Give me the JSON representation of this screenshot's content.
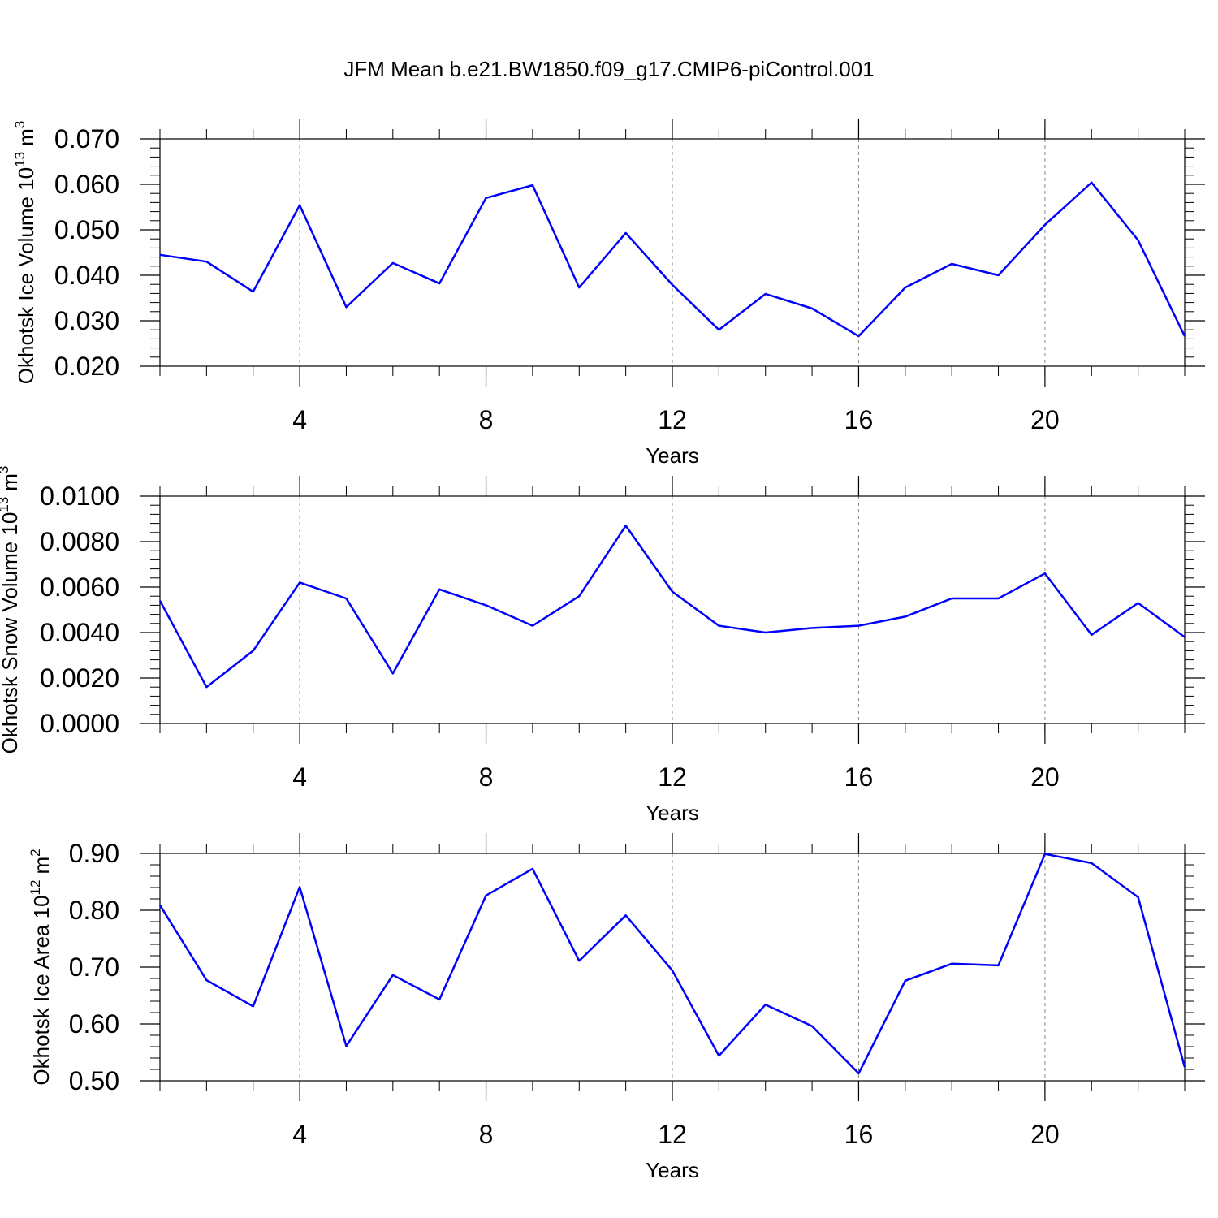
{
  "title": "JFM Mean b.e21.BW1850.f09_g17.CMIP6-piControl.001",
  "chart_data": [
    {
      "type": "line",
      "ylabel": [
        "Okhotsk Ice Volume 10",
        "13",
        "m",
        "3"
      ],
      "xlabel": "Years",
      "x": [
        1,
        2,
        3,
        4,
        5,
        6,
        7,
        8,
        9,
        10,
        11,
        12,
        13,
        14,
        15,
        16,
        17,
        18,
        19,
        20,
        21,
        22,
        23
      ],
      "values": [
        0.0445,
        0.043,
        0.0364,
        0.0554,
        0.033,
        0.0427,
        0.0382,
        0.057,
        0.0598,
        0.0373,
        0.0493,
        0.0379,
        0.028,
        0.0359,
        0.0327,
        0.0266,
        0.0373,
        0.0425,
        0.04,
        0.0511,
        0.0604,
        0.0477,
        0.0266
      ],
      "color": "#0000ff",
      "xlim": [
        1,
        23
      ],
      "xticks": [
        4,
        8,
        12,
        16,
        20
      ],
      "ylim": [
        0.02,
        0.07
      ],
      "yticks": [
        {
          "value": 0.02,
          "label": "0.020"
        },
        {
          "value": 0.03,
          "label": "0.030"
        },
        {
          "value": 0.04,
          "label": "0.040"
        },
        {
          "value": 0.05,
          "label": "0.050"
        },
        {
          "value": 0.06,
          "label": "0.060"
        },
        {
          "value": 0.07,
          "label": "0.070"
        }
      ],
      "grid": true
    },
    {
      "type": "line",
      "ylabel": [
        "Okhotsk Snow Volume 10",
        "13",
        "m",
        "3"
      ],
      "xlabel": "Years",
      "x": [
        1,
        2,
        3,
        4,
        5,
        6,
        7,
        8,
        9,
        10,
        11,
        12,
        13,
        14,
        15,
        16,
        17,
        18,
        19,
        20,
        21,
        22,
        23
      ],
      "values": [
        0.0054,
        0.0016,
        0.0032,
        0.0062,
        0.0055,
        0.0022,
        0.0059,
        0.0052,
        0.0043,
        0.0056,
        0.0087,
        0.0058,
        0.0043,
        0.004,
        0.0042,
        0.0043,
        0.0047,
        0.0055,
        0.0055,
        0.0066,
        0.0039,
        0.0053,
        0.0038
      ],
      "color": "#0000ff",
      "xlim": [
        1,
        23
      ],
      "xticks": [
        4,
        8,
        12,
        16,
        20
      ],
      "ylim": [
        0,
        0.01
      ],
      "yticks": [
        {
          "value": 0,
          "label": "0.0000"
        },
        {
          "value": 0.002,
          "label": "0.0020"
        },
        {
          "value": 0.004,
          "label": "0.0040"
        },
        {
          "value": 0.006,
          "label": "0.0060"
        },
        {
          "value": 0.008,
          "label": "0.0080"
        },
        {
          "value": 0.01,
          "label": "0.0100"
        }
      ],
      "grid": true
    },
    {
      "type": "line",
      "ylabel": [
        "Okhotsk Ice Area 10",
        "12",
        "m",
        "2"
      ],
      "xlabel": "Years",
      "x": [
        1,
        2,
        3,
        4,
        5,
        6,
        7,
        8,
        9,
        10,
        11,
        12,
        13,
        14,
        15,
        16,
        17,
        18,
        19,
        20,
        21,
        22,
        23
      ],
      "values": [
        0.809,
        0.677,
        0.631,
        0.841,
        0.561,
        0.686,
        0.643,
        0.826,
        0.873,
        0.711,
        0.791,
        0.694,
        0.544,
        0.634,
        0.596,
        0.513,
        0.676,
        0.706,
        0.703,
        0.899,
        0.883,
        0.823,
        0.524
      ],
      "color": "#0000ff",
      "xlim": [
        1,
        23
      ],
      "xticks": [
        4,
        8,
        12,
        16,
        20
      ],
      "ylim": [
        0.5,
        0.9
      ],
      "yticks": [
        {
          "value": 0.5,
          "label": "0.50"
        },
        {
          "value": 0.6,
          "label": "0.60"
        },
        {
          "value": 0.7,
          "label": "0.70"
        },
        {
          "value": 0.8,
          "label": "0.80"
        },
        {
          "value": 0.9,
          "label": "0.90"
        }
      ],
      "grid": true
    }
  ]
}
